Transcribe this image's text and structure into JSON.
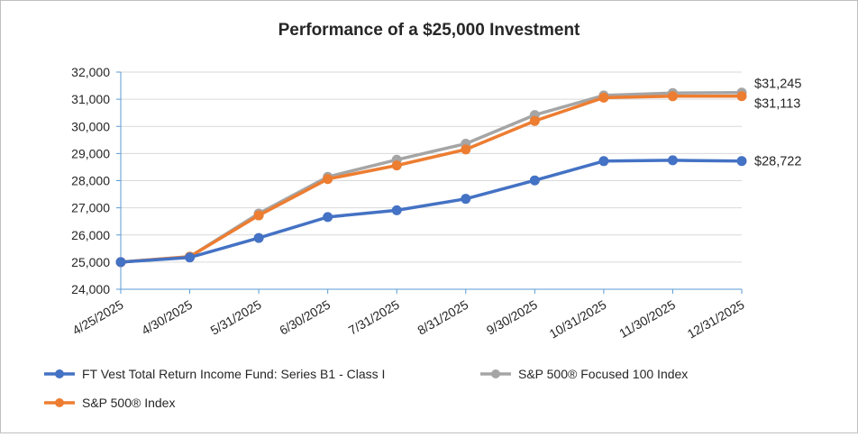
{
  "chart_data": {
    "type": "line",
    "title": "Performance of a $25,000 Investment",
    "xlabel": "",
    "ylabel": "",
    "ylim": [
      24000,
      32000
    ],
    "yticks": [
      24000,
      25000,
      26000,
      27000,
      28000,
      29000,
      30000,
      31000,
      32000
    ],
    "ytick_labels": [
      "24,000",
      "25,000",
      "26,000",
      "27,000",
      "28,000",
      "29,000",
      "30,000",
      "31,000",
      "32,000"
    ],
    "categories": [
      "4/25/2025",
      "4/30/2025",
      "5/31/2025",
      "6/30/2025",
      "7/31/2025",
      "8/31/2025",
      "9/30/2025",
      "10/31/2025",
      "11/30/2025",
      "12/31/2025"
    ],
    "grid": true,
    "legend_position": "bottom",
    "series": [
      {
        "name": "FT Vest Total Return Income Fund: Series B1 - Class I",
        "color": "#4472c4",
        "values": [
          25000,
          25170,
          25890,
          26660,
          26910,
          27330,
          28010,
          28720,
          28750,
          28722
        ],
        "end_label": "$28,722"
      },
      {
        "name": "S&P 500® Index",
        "color": "#ed7d31",
        "values": [
          25000,
          25200,
          26720,
          28060,
          28560,
          29150,
          30200,
          31060,
          31110,
          31113
        ],
        "end_label": "$31,113"
      },
      {
        "name": "S&P 500® Focused 100 Index",
        "color": "#a5a5a5",
        "values": [
          25000,
          25200,
          26790,
          28140,
          28770,
          29360,
          30420,
          31140,
          31230,
          31245
        ],
        "end_label": "$31,245"
      }
    ],
    "legend_order": [
      0,
      2,
      1
    ]
  }
}
